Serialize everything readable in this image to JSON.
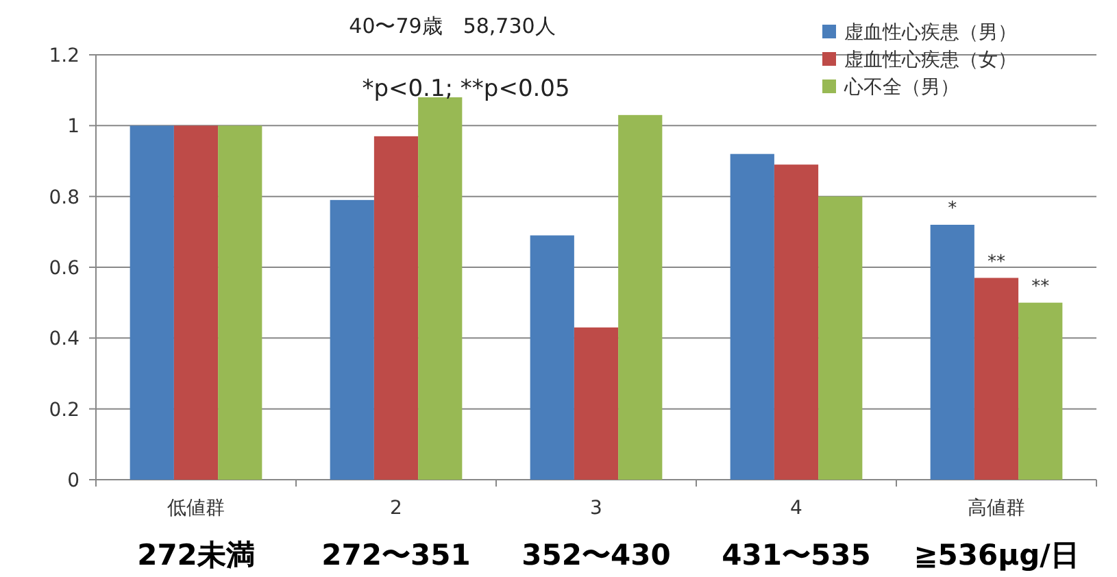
{
  "chart_data": {
    "type": "bar",
    "title": "40〜79歳　58,730人",
    "categories": [
      "低値群",
      "2",
      "3",
      "4",
      "高値群"
    ],
    "series": [
      {
        "name": "虚血性心疾患（男）",
        "color": "#4a7ebb",
        "values": [
          1,
          0.79,
          0.69,
          0.92,
          0.72
        ]
      },
      {
        "name": "虚血性心疾患（女）",
        "color": "#be4b48",
        "values": [
          1,
          0.97,
          0.43,
          0.89,
          0.57
        ]
      },
      {
        "name": "心不全（男）",
        "color": "#98b954",
        "values": [
          1,
          1.08,
          1.03,
          0.8,
          0.5
        ]
      }
    ],
    "ylim": [
      0,
      1.2
    ],
    "yticks": [
      0,
      0.2,
      0.4,
      0.6,
      0.8,
      1,
      1.2
    ],
    "grid": "y",
    "legend": "top right",
    "annotations": [
      "*p<0.1; **p<0.05",
      "272未満",
      "272〜351",
      "352〜430",
      "431〜535",
      "≧536μg/日",
      "*",
      "**",
      "**"
    ]
  }
}
